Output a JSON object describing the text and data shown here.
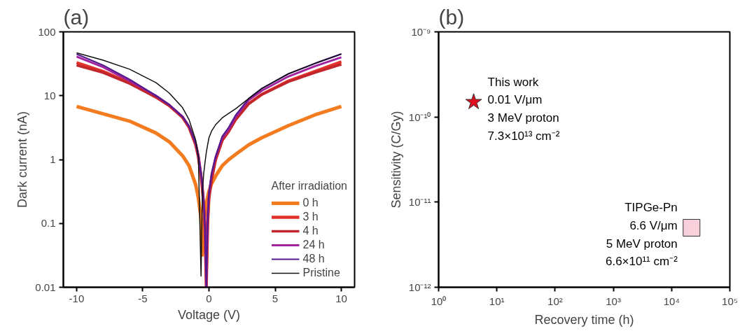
{
  "chart_data": [
    {
      "type": "line",
      "title": "(a)",
      "xlabel": "Voltage (V)",
      "ylabel": "Dark current (nA)",
      "log": "y",
      "grid": false,
      "legend": "bottom right",
      "legend_title": "After irradiation",
      "marker": "none",
      "line_style": "solid",
      "xlim": [
        -11,
        11
      ],
      "xticks": [
        -10,
        -5,
        0,
        5,
        10
      ],
      "ylim": [
        0.01,
        100
      ],
      "yticks": [
        0.01,
        0.1,
        1,
        10,
        100
      ],
      "x": [
        -10,
        -8,
        -6,
        -4,
        -3,
        -2,
        -1.5,
        -1,
        -0.8,
        -0.6,
        -0.5,
        -0.4,
        -0.3,
        -0.2,
        -0.1,
        0,
        0.2,
        0.5,
        1,
        1.5,
        2,
        3,
        4,
        6,
        8,
        10
      ],
      "series": [
        {
          "name": "0 h",
          "color": "#f47c20",
          "values": [
            6.8,
            5.2,
            4,
            2.6,
            1.9,
            1.15,
            0.8,
            0.4,
            0.25,
            0.12,
            0.032,
            0.08,
            0.15,
            0.2,
            0.26,
            0.32,
            0.42,
            0.55,
            0.8,
            1.0,
            1.2,
            1.7,
            2.2,
            3.4,
            5,
            6.8
          ]
        },
        {
          "name": "3 h",
          "color": "#e2312a",
          "values": [
            33,
            24,
            16,
            9.5,
            7,
            4.6,
            3.2,
            1.7,
            1.1,
            0.55,
            0.35,
            0.2,
            0.08,
            0.01,
            0.1,
            0.25,
            0.5,
            1.0,
            2.0,
            2.8,
            4.2,
            7.5,
            10.5,
            17,
            24,
            34
          ]
        },
        {
          "name": "4 h",
          "color": "#c0262c",
          "values": [
            30,
            23,
            15.5,
            9.5,
            7,
            4.6,
            3.2,
            1.7,
            1.1,
            0.55,
            0.35,
            0.2,
            0.08,
            0.01,
            0.1,
            0.25,
            0.5,
            1.0,
            2.0,
            2.8,
            4.2,
            7.5,
            10.5,
            16.5,
            23,
            31
          ]
        },
        {
          "name": "24 h",
          "color": "#a0229e",
          "values": [
            41,
            28,
            17,
            10,
            7.2,
            4.7,
            3.3,
            1.8,
            1.15,
            0.6,
            0.4,
            0.22,
            0.09,
            0.01,
            0.12,
            0.3,
            0.6,
            1.1,
            2.2,
            3.0,
            4.6,
            8.5,
            12,
            20,
            29,
            40
          ]
        },
        {
          "name": "48 h",
          "color": "#561b8c",
          "values": [
            45,
            30,
            18,
            10,
            7.2,
            4.7,
            3.3,
            1.8,
            1.15,
            0.6,
            0.4,
            0.22,
            0.09,
            0.01,
            0.12,
            0.3,
            0.6,
            1.1,
            2.3,
            3.2,
            4.9,
            9,
            13,
            22,
            32,
            45
          ]
        },
        {
          "name": "Pristine",
          "color": "#111111",
          "values": [
            47,
            36,
            26,
            16,
            11,
            6.5,
            4.2,
            2,
            1.1,
            0.015,
            0.3,
            0.6,
            0.9,
            1.3,
            1.7,
            2.2,
            2.8,
            3.5,
            4.5,
            5.3,
            6.2,
            9,
            13,
            22,
            32,
            45
          ]
        }
      ]
    },
    {
      "type": "scatter",
      "title": "(b)",
      "xlabel": "Recovery time (h)",
      "ylabel": "Sensitivity (C/Gy)",
      "log": "xy",
      "grid": false,
      "legend": false,
      "xlim": [
        1,
        100000
      ],
      "xticks": [
        {
          "value": 1,
          "label": "10⁰"
        },
        {
          "value": 10,
          "label": "10¹"
        },
        {
          "value": 100,
          "label": "10²"
        },
        {
          "value": 1000,
          "label": "10³"
        },
        {
          "value": 10000,
          "label": "10⁴"
        },
        {
          "value": 100000,
          "label": "10⁵"
        }
      ],
      "ylim": [
        1e-12,
        1e-09
      ],
      "yticks": [
        {
          "value": 1e-12,
          "label": "10⁻¹²"
        },
        {
          "value": 1e-11,
          "label": "10⁻¹¹"
        },
        {
          "value": 1e-10,
          "label": "10⁻¹⁰"
        },
        {
          "value": 1e-09,
          "label": "10⁻⁹"
        }
      ],
      "series": [
        {
          "x": [
            4
          ],
          "values": [
            1.5e-10
          ],
          "marker": "star",
          "color": "#e0101f"
        },
        {
          "x": [
            22000
          ],
          "values": [
            5e-12
          ],
          "marker": "square",
          "color": "#f8d0dc"
        }
      ],
      "annotations": [
        "This work\n0.01 V/μm\n3 MeV proton\n7.3×10¹³ cm⁻²",
        "TIPGe-Pn\n6.6 V/μm\n5 MeV proton\n6.6×10¹¹ cm⁻²"
      ]
    }
  ]
}
